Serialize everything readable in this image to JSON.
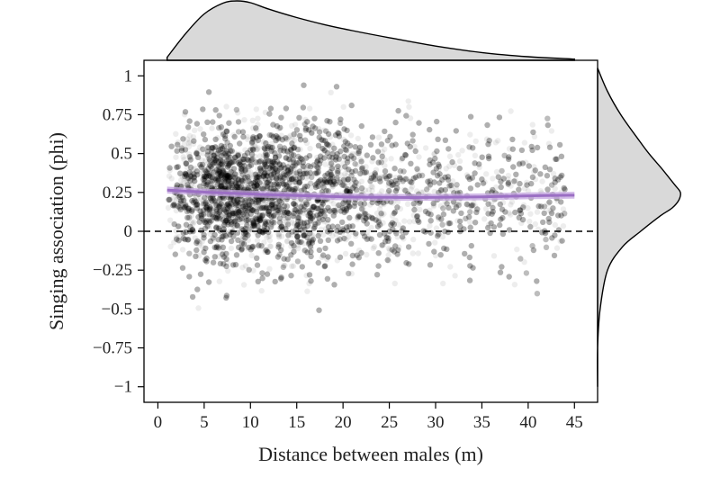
{
  "chart_data": {
    "type": "scatter",
    "title": "",
    "xlabel": "Distance between males (m)",
    "ylabel": "Singing association (phi)",
    "xlim": [
      -1.5,
      47.5
    ],
    "ylim": [
      -1.1,
      1.1
    ],
    "x_ticks": [
      0,
      5,
      10,
      15,
      20,
      25,
      30,
      35,
      40,
      45
    ],
    "y_ticks": [
      1,
      0.75,
      0.5,
      0.25,
      0,
      -0.25,
      -0.5,
      -0.75,
      -1
    ],
    "x_tick_labels": [
      "0",
      "5",
      "10",
      "15",
      "20",
      "25",
      "30",
      "35",
      "40",
      "45"
    ],
    "y_tick_labels": [
      "1",
      "0.75",
      "0.5",
      "0.25",
      "0",
      "−0.25",
      "−0.5",
      "−0.75",
      "−1"
    ],
    "grid": false,
    "reference_line": {
      "y": 0,
      "style": "dashed",
      "color": "#000000"
    },
    "point_color": "#000000",
    "point_opacity": 0.07,
    "point_count_approx": 9000,
    "fit_line": {
      "color": "#9b6fc4",
      "band_color": "#c4a6e0",
      "points": [
        [
          1,
          0.265
        ],
        [
          5,
          0.252
        ],
        [
          10,
          0.24
        ],
        [
          15,
          0.23
        ],
        [
          20,
          0.222
        ],
        [
          25,
          0.218
        ],
        [
          30,
          0.218
        ],
        [
          35,
          0.222
        ],
        [
          40,
          0.228
        ],
        [
          45,
          0.232
        ]
      ],
      "band_halfwidth": 0.022
    },
    "marginal_x": {
      "fill": "#d9d9d9",
      "x": [
        1,
        3,
        5,
        7,
        8.5,
        10,
        12,
        15,
        18,
        21,
        25,
        30,
        35,
        40,
        45
      ],
      "density": [
        0.05,
        0.45,
        0.78,
        0.96,
        1.0,
        0.97,
        0.86,
        0.72,
        0.6,
        0.5,
        0.38,
        0.24,
        0.13,
        0.06,
        0.02
      ]
    },
    "marginal_y": {
      "fill": "#d9d9d9",
      "y": [
        1.05,
        0.9,
        0.75,
        0.6,
        0.5,
        0.4,
        0.3,
        0.25,
        0.2,
        0.15,
        0.1,
        0.0,
        -0.1,
        -0.25,
        -0.5,
        -0.75,
        -1.0
      ],
      "density": [
        0.0,
        0.12,
        0.28,
        0.48,
        0.62,
        0.78,
        0.93,
        1.0,
        0.98,
        0.9,
        0.76,
        0.52,
        0.3,
        0.12,
        0.03,
        0.0,
        0.0
      ]
    }
  }
}
